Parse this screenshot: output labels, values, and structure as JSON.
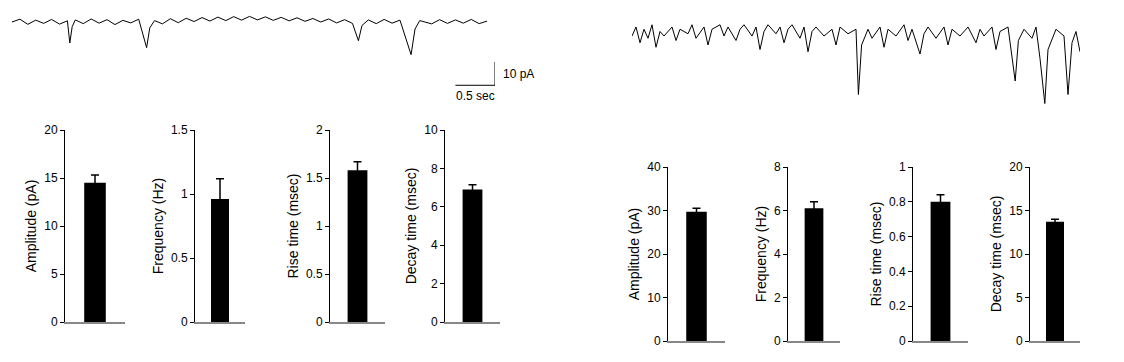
{
  "chart_data": [
    {
      "type": "line",
      "color": "#000000",
      "tick_labels": false,
      "xlim": [
        0,
        6.1
      ],
      "ylim": [
        -30,
        6
      ],
      "x": [
        0.0,
        0.1,
        0.2,
        0.3,
        0.4,
        0.5,
        0.6,
        0.7,
        0.73,
        0.76,
        0.8,
        0.9,
        1.0,
        1.1,
        1.2,
        1.3,
        1.4,
        1.5,
        1.6,
        1.7,
        1.74,
        1.8,
        1.9,
        2.0,
        2.1,
        2.2,
        2.3,
        2.4,
        2.5,
        2.6,
        2.7,
        2.8,
        2.9,
        3.0,
        3.1,
        3.2,
        3.3,
        3.4,
        3.5,
        3.6,
        3.7,
        3.8,
        3.9,
        4.0,
        4.1,
        4.2,
        4.3,
        4.375,
        4.42,
        4.5,
        4.6,
        4.7,
        4.8,
        4.9,
        5.04,
        5.09,
        5.15,
        5.3,
        5.4,
        5.5,
        5.6,
        5.7,
        5.8,
        5.9,
        6.0
      ],
      "values": [
        0,
        1.2,
        -1,
        0.8,
        -0.6,
        1.1,
        -0.9,
        0.5,
        -9,
        -2,
        0.9,
        -0.7,
        1.3,
        -0.5,
        1.0,
        -1.1,
        0.7,
        -0.4,
        1.2,
        -11,
        -2.5,
        0.6,
        -0.8,
        1.4,
        -0.3,
        1.6,
        0.2,
        1.9,
        0.4,
        2.1,
        0.6,
        2.3,
        0.8,
        2.4,
        0.9,
        2.2,
        0.7,
        2.0,
        0.5,
        1.8,
        0.3,
        1.5,
        0,
        1.3,
        -0.4,
        1.0,
        -0.6,
        -8,
        -1.5,
        0.9,
        -0.7,
        1.1,
        -0.5,
        0.8,
        -14,
        -3,
        0.6,
        -0.8,
        1.0,
        -0.6,
        0.9,
        -0.5,
        1.1,
        -0.7,
        0.4
      ],
      "scale_bar": {
        "x": 0.5,
        "y": 10,
        "x_label": "0.5 sec",
        "y_label": "10 pA"
      }
    },
    {
      "type": "bar",
      "categories": [
        null
      ],
      "values": [
        14.5
      ],
      "errors": [
        0.8
      ],
      "color": "#000000",
      "y_label": "Amplitude (pA)",
      "ylim": [
        0,
        20
      ],
      "yticks": [
        0,
        5,
        10,
        15,
        20
      ],
      "tick_labels": "y"
    },
    {
      "type": "bar",
      "categories": [
        null
      ],
      "values": [
        0.96
      ],
      "errors": [
        0.16
      ],
      "color": "#000000",
      "y_label": "Frequency (Hz)",
      "ylim": [
        0,
        1.5
      ],
      "yticks": [
        0,
        0.5,
        1,
        1.5
      ],
      "tick_labels": "y"
    },
    {
      "type": "bar",
      "categories": [
        null
      ],
      "values": [
        1.58
      ],
      "errors": [
        0.09
      ],
      "color": "#000000",
      "y_label": "Rise time (msec)",
      "ylim": [
        0,
        2
      ],
      "yticks": [
        0,
        0.5,
        1,
        1.5,
        2
      ],
      "tick_labels": "y"
    },
    {
      "type": "bar",
      "categories": [
        null
      ],
      "values": [
        6.9
      ],
      "errors": [
        0.25
      ],
      "color": "#000000",
      "y_label": "Decay time (msec)",
      "ylim": [
        0,
        10
      ],
      "yticks": [
        0,
        2,
        4,
        6,
        8,
        10
      ],
      "tick_labels": "y"
    },
    {
      "type": "line",
      "color": "#000000",
      "tick_labels": false,
      "xlim": [
        0,
        5.6
      ],
      "ylim": [
        -34,
        6
      ],
      "x": [
        0.0,
        0.05,
        0.1,
        0.15,
        0.2,
        0.25,
        0.3,
        0.35,
        0.4,
        0.5,
        0.55,
        0.6,
        0.7,
        0.75,
        0.8,
        0.9,
        0.95,
        1.0,
        1.1,
        1.15,
        1.2,
        1.3,
        1.35,
        1.4,
        1.5,
        1.55,
        1.6,
        1.65,
        1.7,
        1.8,
        1.85,
        1.9,
        1.95,
        2.0,
        2.1,
        2.15,
        2.2,
        2.25,
        2.3,
        2.4,
        2.5,
        2.55,
        2.6,
        2.7,
        2.8,
        2.83,
        2.87,
        2.95,
        3.0,
        3.1,
        3.15,
        3.2,
        3.3,
        3.4,
        3.45,
        3.5,
        3.6,
        3.65,
        3.7,
        3.8,
        3.9,
        3.95,
        4.0,
        4.1,
        4.2,
        4.3,
        4.35,
        4.4,
        4.5,
        4.55,
        4.6,
        4.7,
        4.79,
        4.83,
        4.9,
        5.0,
        5.05,
        5.1,
        5.16,
        5.2,
        5.3,
        5.4,
        5.45,
        5.5,
        5.55,
        5.6
      ],
      "values": [
        -2,
        2,
        -5,
        1,
        -3,
        3,
        -7,
        0,
        -2,
        2,
        -4,
        1,
        -1,
        3,
        -3,
        2,
        -6,
        1,
        3,
        -2,
        2,
        -4,
        1,
        3,
        -2,
        2,
        -8,
        0,
        3,
        -1,
        2,
        -5,
        1,
        3,
        -3,
        2,
        -9,
        0,
        2,
        -2,
        1,
        -6,
        2,
        -1,
        1,
        -28,
        -6,
        1,
        -3,
        2,
        -7,
        1,
        -2,
        3,
        -4,
        1,
        -10,
        -1,
        2,
        -3,
        2,
        -6,
        1,
        -2,
        2,
        -5,
        1,
        -2,
        2,
        -8,
        0,
        2,
        -22,
        -4,
        1,
        -3,
        2,
        -12,
        -32,
        -8,
        1,
        -2,
        -28,
        -5,
        0,
        -9
      ]
    },
    {
      "type": "bar",
      "categories": [
        null
      ],
      "values": [
        29.7
      ],
      "errors": [
        0.8
      ],
      "color": "#000000",
      "y_label": "Amplitude (pA)",
      "ylim": [
        0,
        40
      ],
      "yticks": [
        0,
        10,
        20,
        30,
        40
      ],
      "tick_labels": "y"
    },
    {
      "type": "bar",
      "categories": [
        null
      ],
      "values": [
        6.1
      ],
      "errors": [
        0.3
      ],
      "color": "#000000",
      "y_label": "Frequency (Hz)",
      "ylim": [
        0,
        8
      ],
      "yticks": [
        0,
        2,
        4,
        6,
        8
      ],
      "tick_labels": "y"
    },
    {
      "type": "bar",
      "categories": [
        null
      ],
      "values": [
        0.8
      ],
      "errors": [
        0.04
      ],
      "color": "#000000",
      "y_label": "Rise time (msec)",
      "ylim": [
        0,
        1
      ],
      "yticks": [
        0,
        0.2,
        0.4,
        0.6,
        0.8,
        1
      ],
      "tick_labels": "y"
    },
    {
      "type": "bar",
      "categories": [
        null
      ],
      "values": [
        13.7
      ],
      "errors": [
        0.3
      ],
      "color": "#000000",
      "y_label": "Decay time (msec)",
      "ylim": [
        0,
        20
      ],
      "yticks": [
        0,
        5,
        10,
        15,
        20
      ],
      "tick_labels": "y"
    }
  ]
}
